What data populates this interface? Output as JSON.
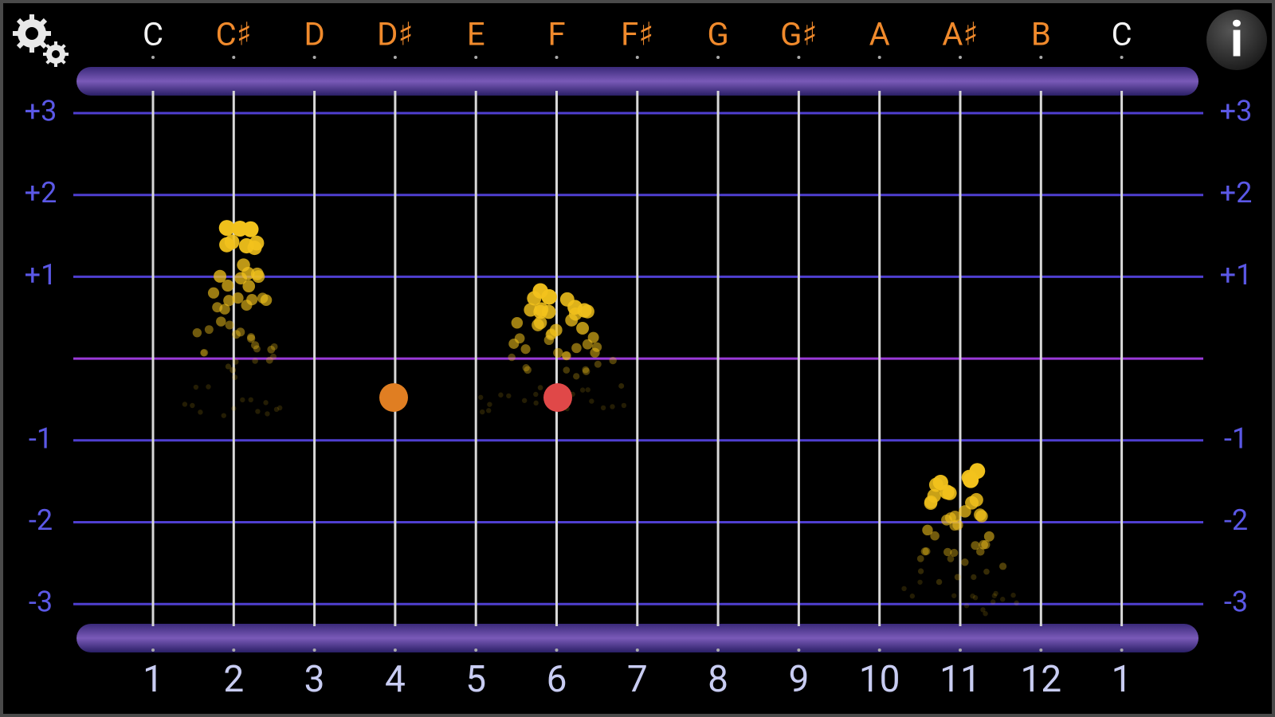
{
  "notes": [
    "C",
    "C♯",
    "D",
    "D♯",
    "E",
    "F",
    "F♯",
    "G",
    "G♯",
    "A",
    "A♯",
    "B",
    "C"
  ],
  "numbers": [
    "1",
    "2",
    "3",
    "4",
    "5",
    "6",
    "7",
    "8",
    "9",
    "10",
    "11",
    "12",
    "1"
  ],
  "scale_labels": [
    "+3",
    "+2",
    "+1",
    "-1",
    "-2",
    "-3"
  ]
}
